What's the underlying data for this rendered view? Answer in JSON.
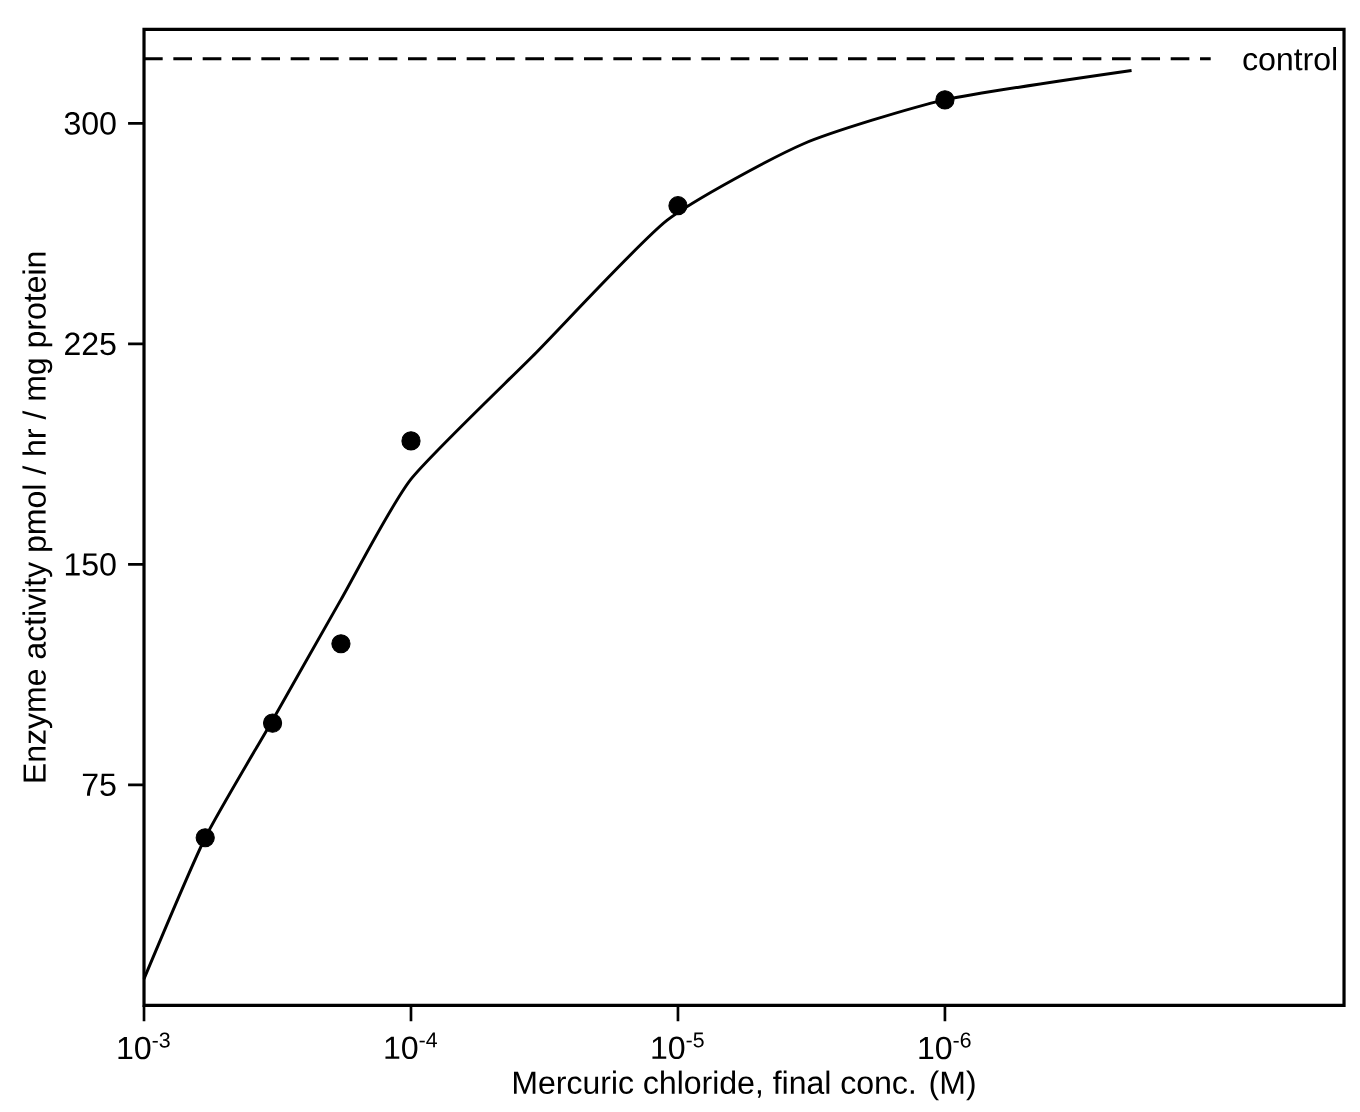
{
  "chart_data": {
    "type": "scatter",
    "xlabel": "Mercuric chloride, final conc. (M)",
    "ylabel": "Enzyme activity pmol / hr / mg protein",
    "log": "x",
    "xlim": [
      0.001,
      3.2e-08
    ],
    "ylim": [
      0,
      332
    ],
    "xticks": [
      {
        "value": 0.001,
        "label": "10$^{-3}$"
      },
      {
        "value": 0.0001,
        "label": "10$^{-4}$"
      },
      {
        "value": 1e-05,
        "label": "10$^{-5}$"
      },
      {
        "value": 1e-06,
        "label": "10$^{-6}$"
      }
    ],
    "yticks": [
      75,
      150,
      225,
      300
    ],
    "series": [
      {
        "color": "#000000",
        "marker": "circle",
        "x": [
          0.00059,
          0.00033,
          0.000183,
          0.0001,
          1e-05,
          1e-06
        ],
        "values": [
          57,
          96,
          123,
          192,
          272,
          308
        ]
      },
      {
        "type": "line",
        "color": "#000000",
        "marker": "none",
        "line_style": "solid",
        "x": [
          0.001,
          0.00059,
          0.00033,
          0.000183,
          0.0001,
          3.4e-05,
          1.1e-05,
          3.4e-06,
          1e-06,
          2e-07
        ],
        "values": [
          9,
          57,
          97,
          138,
          179,
          222,
          267,
          293,
          308,
          318
        ]
      }
    ],
    "ref_lines": [
      {
        "axis": "y",
        "value": 322,
        "label": "control",
        "line_style": "dashed",
        "color": "#000000"
      }
    ]
  }
}
